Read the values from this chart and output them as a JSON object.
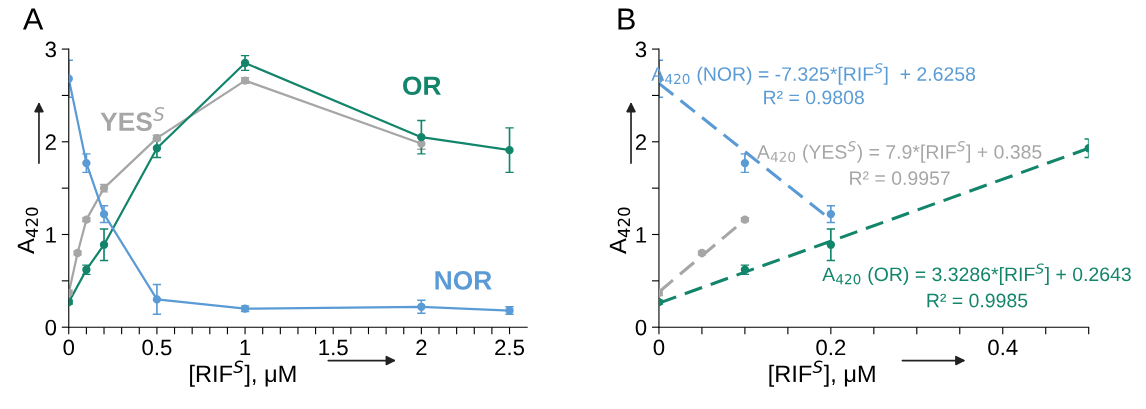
{
  "chart_data": [
    {
      "type": "line",
      "title": "A",
      "xlabel": "[RIF$^{S}$], μM",
      "ylabel": "A$_{420}$",
      "xlim": [
        0,
        2.6
      ],
      "xticks": [
        0,
        {
          "value": 0.1,
          "label": null
        },
        {
          "value": 0.2,
          "label": null
        },
        {
          "value": 0.3,
          "label": null
        },
        {
          "value": 0.4,
          "label": null
        },
        0.5,
        {
          "value": 0.6,
          "label": null
        },
        {
          "value": 0.7,
          "label": null
        },
        {
          "value": 0.8,
          "label": null
        },
        {
          "value": 0.9,
          "label": null
        },
        1,
        {
          "value": 1.1,
          "label": null
        },
        {
          "value": 1.2,
          "label": null
        },
        {
          "value": 1.3,
          "label": null
        },
        {
          "value": 1.4,
          "label": null
        },
        1.5,
        {
          "value": 1.6,
          "label": null
        },
        {
          "value": 1.7,
          "label": null
        },
        {
          "value": 1.8,
          "label": null
        },
        {
          "value": 1.9,
          "label": null
        },
        2,
        {
          "value": 2.1,
          "label": null
        },
        {
          "value": 2.2,
          "label": null
        },
        {
          "value": 2.3,
          "label": null
        },
        {
          "value": 2.4,
          "label": null
        },
        2.5
      ],
      "ylim": [
        0,
        3
      ],
      "yticks": [
        0,
        {
          "value": 0.5,
          "label": null
        },
        1,
        {
          "value": 1.5,
          "label": null
        },
        2,
        {
          "value": 2.5,
          "label": null
        },
        3
      ],
      "grid": false,
      "legend": false,
      "marker": "circle",
      "line_style": "solid",
      "series": [
        {
          "name": "YES$^{S}$",
          "color": "#a6a6a6",
          "x": [
            0,
            0.05,
            0.1,
            0.2,
            0.5,
            1,
            2
          ],
          "values": [
            0.37,
            0.8,
            1.16,
            1.5,
            2.04,
            2.66,
            1.98
          ],
          "errors": [
            0.03,
            0.02,
            0.02,
            0.04,
            0.03,
            0.03,
            0.06
          ]
        },
        {
          "name": "OR",
          "color": "#13856b",
          "x": [
            0,
            0.1,
            0.2,
            0.5,
            1,
            2,
            2.5
          ],
          "values": [
            0.27,
            0.62,
            0.89,
            1.93,
            2.85,
            2.05,
            1.91
          ],
          "errors": [
            0.02,
            0.05,
            0.17,
            0.1,
            0.08,
            0.18,
            0.24
          ]
        },
        {
          "name": "NOR",
          "color": "#5b9bd5",
          "x": [
            0,
            0.1,
            0.2,
            0.5,
            1,
            2,
            2.5
          ],
          "values": [
            2.68,
            1.77,
            1.22,
            0.3,
            0.2,
            0.22,
            0.18
          ],
          "errors": [
            0.2,
            0.1,
            0.09,
            0.16,
            0.03,
            0.07,
            0.04
          ]
        }
      ]
    },
    {
      "type": "scatter",
      "title": "B",
      "xlabel": "[RIF$^{S}$], μM",
      "ylabel": "A$_{420}$",
      "xlim": [
        0,
        0.5
      ],
      "xticks": [
        0,
        {
          "value": 0.05,
          "label": null
        },
        {
          "value": 0.1,
          "label": null
        },
        {
          "value": 0.15,
          "label": null
        },
        0.2,
        {
          "value": 0.25,
          "label": null
        },
        {
          "value": 0.3,
          "label": null
        },
        {
          "value": 0.35,
          "label": null
        },
        0.4,
        {
          "value": 0.45,
          "label": null
        },
        {
          "value": 0.5,
          "label": null
        }
      ],
      "ylim": [
        0,
        3
      ],
      "yticks": [
        0,
        {
          "value": 0.5,
          "label": null
        },
        1,
        {
          "value": 1.5,
          "label": null
        },
        2,
        {
          "value": 2.5,
          "label": null
        },
        3
      ],
      "grid": false,
      "legend": false,
      "marker": "circle",
      "series": [
        {
          "type": "line",
          "color": "#5b9bd5",
          "x": [
            0,
            0.2
          ],
          "values": [
            2.63,
            1.16
          ],
          "line_style": "dashed",
          "marker": "none"
        },
        {
          "type": "line",
          "color": "#a6a6a6",
          "x": [
            0,
            0.1
          ],
          "values": [
            0.38,
            1.16
          ],
          "line_style": "dashed",
          "marker": "none"
        },
        {
          "type": "line",
          "color": "#13856b",
          "x": [
            0,
            0.5
          ],
          "values": [
            0.26,
            1.93
          ],
          "line_style": "dashed",
          "marker": "none"
        },
        {
          "color": "#5b9bd5",
          "x": [
            0,
            0.1,
            0.2
          ],
          "values": [
            2.68,
            1.77,
            1.22
          ],
          "errors": [
            0.2,
            0.1,
            0.09
          ]
        },
        {
          "color": "#a6a6a6",
          "x": [
            0,
            0.05,
            0.1
          ],
          "values": [
            0.37,
            0.8,
            1.16
          ],
          "errors": [
            0.03,
            0.02,
            0.02
          ]
        },
        {
          "color": "#13856b",
          "x": [
            0,
            0.1,
            0.2,
            0.5
          ],
          "values": [
            0.27,
            0.62,
            0.89,
            1.93
          ],
          "errors": [
            0.02,
            0.05,
            0.17,
            0.1
          ]
        }
      ],
      "annotations": [
        "A$_{420}$ (NOR) = -7.325*[RIF$^{S}$]  + 2.6258",
        "R² = 0.9808",
        "A$_{420}$ (YES$^{S}$) = 7.9*[RIF$^{S}$] + 0.385",
        "R² = 0.9957",
        "A$_{420}$ (OR) = 3.3286*[RIF$^{S}$] + 0.2643",
        "R² = 0.9985"
      ]
    }
  ]
}
